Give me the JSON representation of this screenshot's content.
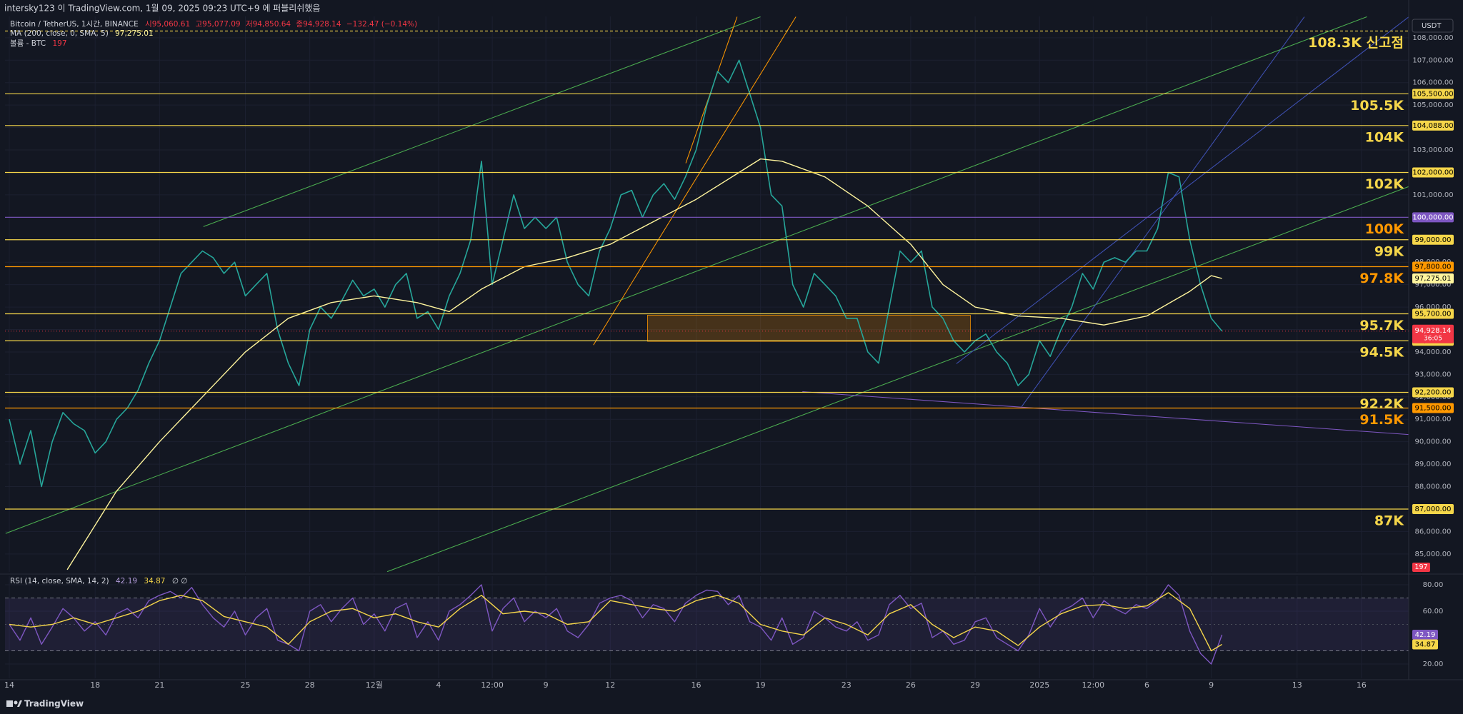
{
  "page_header": "intersky123 이 TradingView.com, 1월 09, 2025 09:23 UTC+9 에 퍼블리쉬했음",
  "brand": "TradingView",
  "chart_data": [
    {
      "type": "line",
      "y_unit": "USDT",
      "legend_values": [
        "시95,060.61",
        "고95,077.09",
        "저94,850.64",
        "종94,928.14",
        "−132.47 (−0.14%)"
      ],
      "xlim": [
        -0.2,
        65.2
      ],
      "ylim": [
        84200,
        108950
      ],
      "yticks": [
        {
          "value": 85000,
          "label": "85,000.00"
        },
        {
          "value": 86000,
          "label": "86,000.00"
        },
        {
          "value": 87000,
          "label": "87,000.00"
        },
        {
          "value": 88000,
          "label": "88,000.00"
        },
        {
          "value": 89000,
          "label": "89,000.00"
        },
        {
          "value": 90000,
          "label": "90,000.00"
        },
        {
          "value": 91000,
          "label": "91,000.00"
        },
        {
          "value": 92000,
          "label": "92,000.00"
        },
        {
          "value": 93000,
          "label": "93,000.00"
        },
        {
          "value": 94000,
          "label": "94,000.00"
        },
        {
          "value": 95000,
          "label": "95,000.00"
        },
        {
          "value": 96000,
          "label": "96,000.00"
        },
        {
          "value": 97000,
          "label": "97,000.00"
        },
        {
          "value": 98000,
          "label": "98,000.00"
        },
        {
          "value": 99000,
          "label": "99,000.00"
        },
        {
          "value": 100000,
          "label": "100,000.00"
        },
        {
          "value": 101000,
          "label": "101,000.00"
        },
        {
          "value": 102000,
          "label": "102,000.00"
        },
        {
          "value": 103000,
          "label": "103,000.00"
        },
        {
          "value": 104000,
          "label": "104,000.00"
        },
        {
          "value": 105000,
          "label": "105,000.00"
        },
        {
          "value": 106000,
          "label": "106,000.00"
        },
        {
          "value": 107000,
          "label": "107,000.00"
        },
        {
          "value": 108000,
          "label": "108,000.00"
        }
      ],
      "x": [
        0,
        0.5,
        1,
        1.5,
        2,
        2.5,
        3,
        3.5,
        4,
        4.5,
        5,
        5.5,
        6,
        6.5,
        7,
        7.5,
        8,
        8.5,
        9,
        9.5,
        10,
        10.5,
        11,
        11.5,
        12,
        12.5,
        13,
        13.5,
        14,
        14.5,
        15,
        15.5,
        16,
        16.5,
        17,
        17.5,
        18,
        18.5,
        19,
        19.5,
        20,
        20.5,
        21,
        21.5,
        22,
        22.5,
        23,
        23.5,
        24,
        24.5,
        25,
        25.5,
        26,
        26.5,
        27,
        27.5,
        28,
        28.5,
        29,
        29.5,
        30,
        30.5,
        31,
        31.5,
        32,
        32.5,
        33,
        33.5,
        34,
        34.5,
        35,
        35.5,
        36,
        36.5,
        37,
        37.5,
        38,
        38.5,
        39,
        39.5,
        40,
        40.5,
        41,
        41.5,
        42,
        42.5,
        43,
        43.5,
        44,
        44.5,
        45,
        45.5,
        46,
        46.5,
        47,
        47.5,
        48,
        48.5,
        49,
        49.5,
        50,
        50.5,
        51,
        51.5,
        52,
        52.5,
        53,
        53.5,
        54,
        54.5,
        55,
        55.5,
        56,
        56.5
      ],
      "series": [
        {
          "name": "Bitcoin / TetherUS, 1시간, BINANCE",
          "color": "#26a69a",
          "values": [
            91000,
            89000,
            90500,
            88000,
            90000,
            91300,
            90800,
            90500,
            89500,
            90000,
            91000,
            91500,
            92300,
            93500,
            94500,
            96000,
            97500,
            98000,
            98500,
            98200,
            97500,
            98000,
            96500,
            97000,
            97500,
            95000,
            93500,
            92500,
            95000,
            96000,
            95500,
            96300,
            97200,
            96500,
            96800,
            96000,
            97000,
            97500,
            95500,
            95800,
            95000,
            96500,
            97500,
            99000,
            102500,
            97000,
            99000,
            101000,
            99500,
            100000,
            99500,
            100000,
            98000,
            97000,
            96500,
            98500,
            99500,
            101000,
            101200,
            100000,
            101000,
            101500,
            100800,
            101800,
            103000,
            105000,
            106500,
            106000,
            107000,
            105500,
            104000,
            101000,
            100500,
            97000,
            96000,
            97500,
            97000,
            96500,
            95500,
            95500,
            94000,
            93500,
            96000,
            98500,
            98000,
            98500,
            96000,
            95500,
            94500,
            94000,
            94500,
            94800,
            94000,
            93500,
            92500,
            93000,
            94500,
            93800,
            95000,
            96000,
            97500,
            96800,
            98000,
            98200,
            98000,
            98500,
            98500,
            99500,
            102000,
            101800,
            99000,
            97000,
            95500,
            94928.14
          ]
        },
        {
          "name": "MA (200, close, 0, SMA, 5)",
          "color": "#fff59d",
          "last_label": "97,275.01",
          "x": [
            2.7,
            5,
            7,
            9,
            11,
            13,
            15,
            17,
            19,
            20.5,
            22,
            24,
            26,
            28,
            30,
            32,
            34,
            35,
            36,
            38,
            40,
            42,
            43.5,
            45,
            47,
            49,
            51,
            53,
            55,
            56,
            56.5
          ],
          "values": [
            84300,
            87800,
            90000,
            92000,
            94000,
            95500,
            96200,
            96500,
            96200,
            95800,
            96800,
            97800,
            98200,
            98800,
            99800,
            100800,
            102000,
            102600,
            102500,
            101800,
            100500,
            98800,
            97000,
            96000,
            95600,
            95500,
            95200,
            95600,
            96700,
            97400,
            97275.01
          ]
        }
      ],
      "levels": [
        {
          "value": 108300,
          "label": "108.3K 신고점",
          "color": "#f5d64a",
          "style": "dashed"
        },
        {
          "value": 105500,
          "label": "105.5K",
          "axis_label": "105,500.00",
          "color": "#f5d64a"
        },
        {
          "value": 104088,
          "label": "104K",
          "axis_label": "104,088.00",
          "color": "#f5d64a"
        },
        {
          "value": 102000,
          "label": "102K",
          "axis_label": "102,000.00",
          "color": "#f5d64a"
        },
        {
          "value": 100000,
          "label": "100K",
          "axis_label": "100,000.00",
          "color": "#7e57c2",
          "label_color": "#ff9800"
        },
        {
          "value": 99000,
          "label": "99K",
          "axis_label": "99,000.00",
          "color": "#f5d64a"
        },
        {
          "value": 97800,
          "label": "97.8K",
          "axis_label": "97,800.00",
          "color": "#ff9800"
        },
        {
          "value": 95700,
          "label": "95.7K",
          "axis_label": "95,700.00",
          "color": "#f5d64a"
        },
        {
          "value": 94500,
          "label": "94.5K",
          "axis_label": "94,500.00",
          "color": "#f5d64a"
        },
        {
          "value": 92200,
          "label": "92.2K",
          "axis_label": "92,200.00",
          "color": "#f5d64a"
        },
        {
          "value": 91500,
          "label": "91.5K",
          "axis_label": "91,500.00",
          "color": "#ff9800"
        },
        {
          "value": 87000,
          "label": "87K",
          "axis_label": "87,000.00",
          "color": "#f5d64a"
        }
      ],
      "last": {
        "value": 94928.14,
        "label": "94,928.14",
        "countdown": "36:05",
        "color": "#f23645"
      },
      "volume": {
        "title": "볼륨 - BTC",
        "last": "197",
        "color": "#f23645"
      }
    },
    {
      "type": "line",
      "title": "RSI (14, close, SMA, 14, 2)",
      "extra": "∅ ∅",
      "xlim": [
        -0.2,
        65.2
      ],
      "ylim": [
        9.2,
        86.5
      ],
      "yticks": [
        {
          "value": 20,
          "label": "20.00"
        },
        {
          "value": 60,
          "label": "60.00"
        },
        {
          "value": 80,
          "label": "80.00"
        }
      ],
      "bands": [
        30,
        70
      ],
      "midline": 50,
      "xticks": [
        {
          "value": 0,
          "label": "14"
        },
        {
          "value": 4,
          "label": "18"
        },
        {
          "value": 7,
          "label": "21"
        },
        {
          "value": 11,
          "label": "25"
        },
        {
          "value": 14,
          "label": "28"
        },
        {
          "value": 17,
          "label": "12월"
        },
        {
          "value": 20,
          "label": "4"
        },
        {
          "value": 22.5,
          "label": "12:00"
        },
        {
          "value": 25,
          "label": "9"
        },
        {
          "value": 28,
          "label": "12"
        },
        {
          "value": 32,
          "label": "16"
        },
        {
          "value": 35,
          "label": "19"
        },
        {
          "value": 39,
          "label": "23"
        },
        {
          "value": 42,
          "label": "26"
        },
        {
          "value": 45,
          "label": "29"
        },
        {
          "value": 48,
          "label": "2025"
        },
        {
          "value": 50.5,
          "label": "12:00"
        },
        {
          "value": 53,
          "label": "6"
        },
        {
          "value": 56,
          "label": "9"
        },
        {
          "value": 60,
          "label": "13"
        },
        {
          "value": 63,
          "label": "16"
        }
      ],
      "series": [
        {
          "color": "#7e57c2",
          "last_label": "42.19",
          "x": [
            0,
            0.5,
            1,
            1.5,
            2,
            2.5,
            3,
            3.5,
            4,
            4.5,
            5,
            5.5,
            6,
            6.5,
            7,
            7.5,
            8,
            8.5,
            9,
            9.5,
            10,
            10.5,
            11,
            11.5,
            12,
            12.5,
            13,
            13.5,
            14,
            14.5,
            15,
            15.5,
            16,
            16.5,
            17,
            17.5,
            18,
            18.5,
            19,
            19.5,
            20,
            20.5,
            21,
            21.5,
            22,
            22.5,
            23,
            23.5,
            24,
            24.5,
            25,
            25.5,
            26,
            26.5,
            27,
            27.5,
            28,
            28.5,
            29,
            29.5,
            30,
            30.5,
            31,
            31.5,
            32,
            32.5,
            33,
            33.5,
            34,
            34.5,
            35,
            35.5,
            36,
            36.5,
            37,
            37.5,
            38,
            38.5,
            39,
            39.5,
            40,
            40.5,
            41,
            41.5,
            42,
            42.5,
            43,
            43.5,
            44,
            44.5,
            45,
            45.5,
            46,
            46.5,
            47,
            47.5,
            48,
            48.5,
            49,
            49.5,
            50,
            50.5,
            51,
            51.5,
            52,
            52.5,
            53,
            53.5,
            54,
            54.5,
            55,
            55.5,
            56,
            56.5
          ],
          "values": [
            50,
            38,
            55,
            35,
            48,
            62,
            55,
            45,
            52,
            42,
            58,
            62,
            55,
            68,
            72,
            75,
            70,
            78,
            65,
            55,
            48,
            60,
            42,
            55,
            62,
            38,
            35,
            30,
            60,
            65,
            52,
            62,
            70,
            50,
            58,
            45,
            62,
            66,
            40,
            52,
            38,
            60,
            65,
            72,
            80,
            45,
            62,
            70,
            52,
            60,
            55,
            62,
            45,
            40,
            50,
            66,
            70,
            72,
            68,
            55,
            65,
            62,
            52,
            66,
            72,
            76,
            75,
            65,
            72,
            52,
            48,
            38,
            55,
            35,
            40,
            60,
            55,
            48,
            45,
            52,
            38,
            42,
            65,
            72,
            62,
            66,
            40,
            45,
            35,
            38,
            52,
            55,
            40,
            35,
            30,
            42,
            62,
            48,
            60,
            64,
            70,
            55,
            68,
            62,
            58,
            65,
            62,
            68,
            80,
            72,
            45,
            28,
            20,
            42.19
          ]
        },
        {
          "color": "#f5d64a",
          "last_label": "34.87",
          "x": [
            0,
            1,
            2,
            3,
            4,
            5,
            6,
            7,
            8,
            9,
            10,
            11,
            12,
            13,
            14,
            15,
            16,
            17,
            18,
            19,
            20,
            21,
            22,
            23,
            24,
            25,
            26,
            27,
            28,
            29,
            30,
            31,
            32,
            33,
            34,
            35,
            36,
            37,
            38,
            39,
            40,
            41,
            42,
            43,
            44,
            45,
            46,
            47,
            48,
            49,
            50,
            51,
            52,
            53,
            54,
            55,
            56,
            56.5
          ],
          "values": [
            50,
            48,
            50,
            55,
            50,
            55,
            60,
            68,
            72,
            68,
            56,
            52,
            48,
            35,
            52,
            60,
            62,
            55,
            58,
            52,
            48,
            62,
            72,
            58,
            60,
            58,
            50,
            52,
            68,
            65,
            62,
            60,
            68,
            72,
            66,
            50,
            45,
            42,
            55,
            50,
            42,
            58,
            65,
            50,
            40,
            48,
            45,
            34,
            48,
            58,
            64,
            65,
            62,
            64,
            74,
            62,
            30,
            34.87
          ]
        }
      ]
    }
  ]
}
